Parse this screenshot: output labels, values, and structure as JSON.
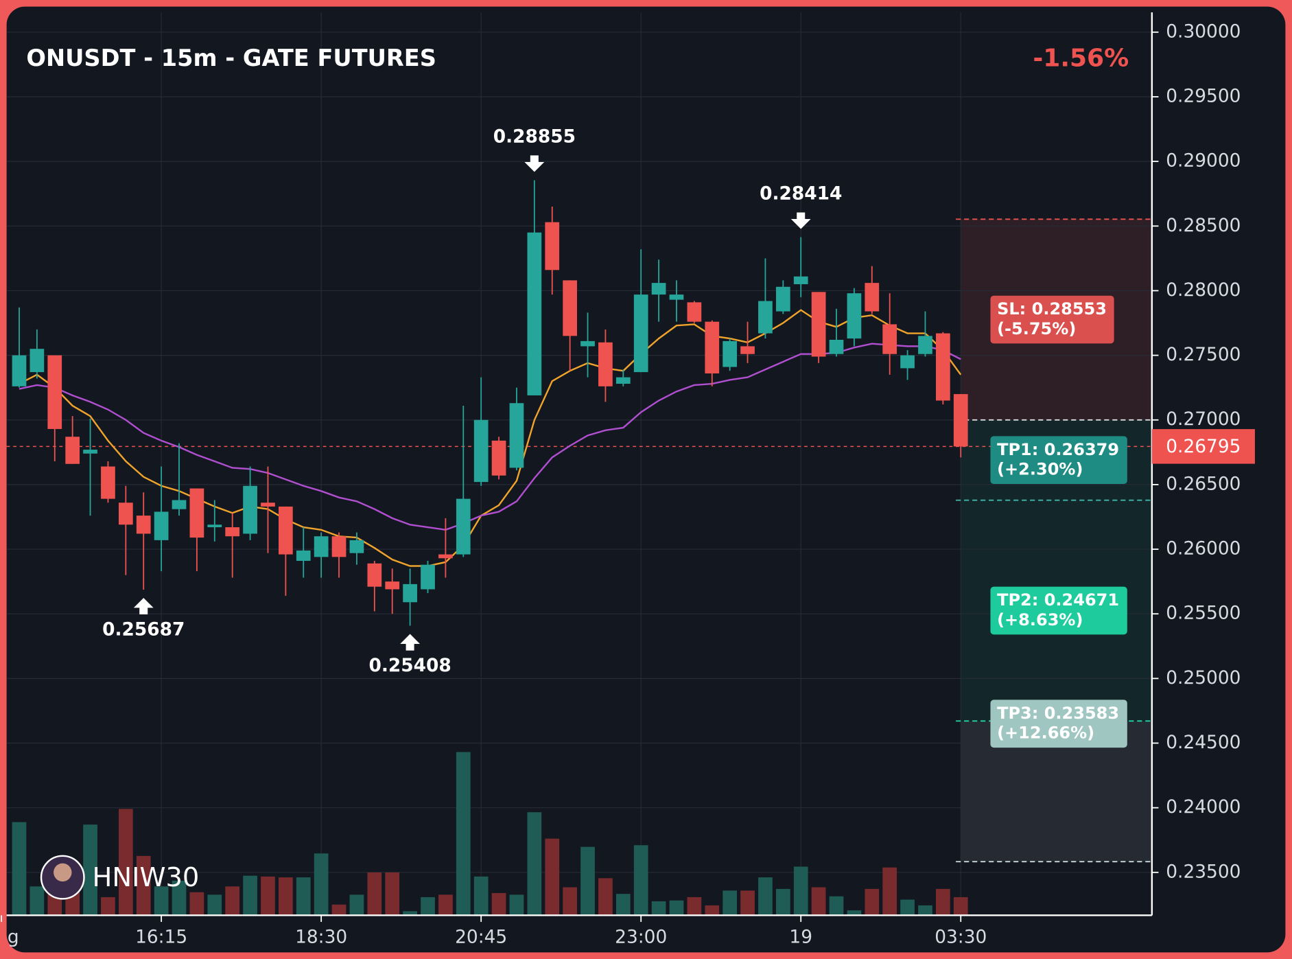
{
  "chart_data": {
    "type": "candlestick",
    "title": "ONUSDT - 15m - GATE FUTURES",
    "change": "-1.56%",
    "watermark": "HNIW30",
    "open": [
      0.2726,
      0.2737,
      0.275,
      0.2687,
      0.2674,
      0.2664,
      0.2636,
      0.2626,
      0.2607,
      0.2631,
      0.2647,
      0.2617,
      0.2617,
      0.2612,
      0.2636,
      0.2633,
      0.2591,
      0.2594,
      0.261,
      0.2597,
      0.2589,
      0.2575,
      0.2559,
      0.2569,
      0.2596,
      0.2596,
      0.2652,
      0.2684,
      0.2663,
      0.2719,
      0.2853,
      0.2808,
      0.2757,
      0.276,
      0.2728,
      0.2737,
      0.2797,
      0.2793,
      0.2791,
      0.2776,
      0.2741,
      0.2757,
      0.2767,
      0.2784,
      0.2805,
      0.2799,
      0.2751,
      0.2763,
      0.2806,
      0.2774,
      0.274,
      0.2751,
      0.2767,
      0.272
    ],
    "high": [
      0.2787,
      0.277,
      0.275,
      0.2703,
      0.2701,
      0.2668,
      0.2649,
      0.2644,
      0.2664,
      0.2682,
      0.2647,
      0.2638,
      0.2628,
      0.2664,
      0.2664,
      0.2633,
      0.2617,
      0.2613,
      0.2613,
      0.2613,
      0.2591,
      0.2585,
      0.2585,
      0.2591,
      0.2624,
      0.2711,
      0.2733,
      0.2687,
      0.2725,
      0.28855,
      0.2865,
      0.2808,
      0.2783,
      0.277,
      0.2739,
      0.2832,
      0.2824,
      0.2808,
      0.2792,
      0.2777,
      0.2763,
      0.2776,
      0.2825,
      0.2808,
      0.28414,
      0.2799,
      0.2786,
      0.2802,
      0.2819,
      0.2798,
      0.2754,
      0.2784,
      0.2768,
      0.272
    ],
    "low": [
      0.2725,
      0.2732,
      0.2668,
      0.2666,
      0.2626,
      0.2636,
      0.258,
      0.25687,
      0.2583,
      0.2626,
      0.2583,
      0.2606,
      0.2578,
      0.2607,
      0.2597,
      0.2564,
      0.2578,
      0.2578,
      0.2578,
      0.2588,
      0.2552,
      0.255,
      0.25408,
      0.2566,
      0.2578,
      0.2594,
      0.2649,
      0.2654,
      0.2661,
      0.2719,
      0.2797,
      0.2738,
      0.2733,
      0.2714,
      0.2726,
      0.2737,
      0.2776,
      0.2776,
      0.2775,
      0.2726,
      0.2738,
      0.2744,
      0.2763,
      0.2782,
      0.2795,
      0.2744,
      0.2749,
      0.2757,
      0.2782,
      0.2735,
      0.2731,
      0.2749,
      0.2712,
      0.2671
    ],
    "close": [
      0.275,
      0.2755,
      0.2693,
      0.2666,
      0.2677,
      0.2639,
      0.2619,
      0.2612,
      0.2629,
      0.2638,
      0.2609,
      0.2619,
      0.261,
      0.2649,
      0.2633,
      0.2596,
      0.2599,
      0.261,
      0.2594,
      0.2607,
      0.2571,
      0.2569,
      0.2573,
      0.2588,
      0.2593,
      0.2639,
      0.27,
      0.2657,
      0.2713,
      0.2845,
      0.2816,
      0.2765,
      0.2761,
      0.2726,
      0.2733,
      0.2797,
      0.2806,
      0.2797,
      0.2776,
      0.2736,
      0.2761,
      0.2751,
      0.2792,
      0.2803,
      0.2811,
      0.2749,
      0.2762,
      0.2798,
      0.2784,
      0.2751,
      0.275,
      0.2765,
      0.2715,
      0.26795
    ],
    "volume": [
      113,
      35,
      52,
      60,
      110,
      22,
      129,
      72,
      35,
      42,
      28,
      25,
      35,
      48,
      47,
      46,
      46,
      75,
      13,
      25,
      52,
      52,
      5,
      22,
      25,
      198,
      47,
      27,
      25,
      125,
      93,
      34,
      83,
      45,
      26,
      85,
      17,
      18,
      22,
      12,
      30,
      30,
      46,
      32,
      59,
      34,
      23,
      6,
      32,
      58,
      19,
      12,
      32,
      22
    ],
    "up_color": "#26a69a",
    "down_color": "#ef5350",
    "up_volume_color": "#1f5c55",
    "down_volume_color": "#7a2b2e",
    "moving_averages": [
      {
        "color": "#f0a42c",
        "values": [
          0.2728,
          0.2735,
          0.2725,
          0.2711,
          0.2703,
          0.2684,
          0.2668,
          0.2656,
          0.2649,
          0.2645,
          0.2639,
          0.2633,
          0.2628,
          0.2633,
          0.2631,
          0.2623,
          0.2617,
          0.2615,
          0.261,
          0.2609,
          0.2601,
          0.2592,
          0.2587,
          0.2587,
          0.259,
          0.2603,
          0.2626,
          0.2634,
          0.2653,
          0.27,
          0.273,
          0.2738,
          0.2744,
          0.274,
          0.2738,
          0.2751,
          0.2763,
          0.2773,
          0.2774,
          0.2765,
          0.2763,
          0.276,
          0.2767,
          0.2775,
          0.2785,
          0.2776,
          0.2772,
          0.2779,
          0.2781,
          0.2773,
          0.2767,
          0.2767,
          0.2754,
          0.2735
        ]
      },
      {
        "color": "#b04fd0",
        "values": [
          0.2724,
          0.2727,
          0.2725,
          0.2719,
          0.2714,
          0.2708,
          0.27,
          0.269,
          0.2684,
          0.2679,
          0.2673,
          0.2668,
          0.2663,
          0.2662,
          0.2659,
          0.2654,
          0.2649,
          0.2645,
          0.264,
          0.2637,
          0.2631,
          0.2624,
          0.2619,
          0.2617,
          0.2615,
          0.262,
          0.2626,
          0.2629,
          0.2637,
          0.2655,
          0.2671,
          0.268,
          0.2688,
          0.2692,
          0.2694,
          0.2706,
          0.2715,
          0.2722,
          0.2727,
          0.2728,
          0.2731,
          0.2733,
          0.2739,
          0.2745,
          0.2751,
          0.2751,
          0.2752,
          0.2756,
          0.2759,
          0.2758,
          0.2757,
          0.2757,
          0.2754,
          0.2747
        ]
      }
    ],
    "annotations": [
      {
        "index": 29,
        "value": 0.28855,
        "position": "above"
      },
      {
        "index": 44,
        "value": 0.28414,
        "position": "above"
      },
      {
        "index": 7,
        "value": 0.25687,
        "position": "below"
      },
      {
        "index": 22,
        "value": 0.25408,
        "position": "below"
      }
    ],
    "last_price": 0.26795,
    "last_price_color": "#ef5350",
    "position_start": 53,
    "levels": [
      {
        "value": 0.28553,
        "label": "SL: 0.28553",
        "sublabel": "(-5.75%)",
        "color": "#ef5350",
        "label_color": "#d9504e",
        "zone_color": "#2e1f27"
      },
      {
        "value": 0.27,
        "color": "#e8e8e8",
        "zone_color": "#13262a"
      },
      {
        "value": 0.26379,
        "label": "TP1: 0.26379",
        "sublabel": "(+2.30%)",
        "color": "#3fb8aa",
        "label_color": "#1f8c84",
        "zone_color": "#13262a"
      },
      {
        "value": 0.24671,
        "label": "TP2: 0.24671",
        "sublabel": "(+8.63%)",
        "color": "#22d3a8",
        "label_color": "#1ecb9c",
        "zone_color": "#252a33"
      },
      {
        "value": 0.23583,
        "label": "TP3: 0.23583",
        "sublabel": "(+12.66%)",
        "color": "#c9d8d8",
        "label_color": "#9fc6c1"
      }
    ],
    "xlim": [
      -0.71,
      63.76
    ],
    "xticks": [
      {
        "value": -1,
        "label": "g"
      },
      {
        "value": 8,
        "label": "16:15"
      },
      {
        "value": 17,
        "label": "18:30"
      },
      {
        "value": 26,
        "label": "20:45"
      },
      {
        "value": 35,
        "label": "23:00"
      },
      {
        "value": 44,
        "label": "19"
      },
      {
        "value": 53,
        "label": "03:30"
      }
    ],
    "ylim": [
      0.23168,
      0.30153
    ],
    "yticks": [
      {
        "value": 0.3,
        "label": "0.30000"
      },
      {
        "value": 0.295,
        "label": "0.29500"
      },
      {
        "value": 0.29,
        "label": "0.29000"
      },
      {
        "value": 0.285,
        "label": "0.28500"
      },
      {
        "value": 0.28,
        "label": "0.28000"
      },
      {
        "value": 0.275,
        "label": "0.27500"
      },
      {
        "value": 0.27,
        "label": "0.27000"
      },
      {
        "value": 0.265,
        "label": "0.26500"
      },
      {
        "value": 0.26,
        "label": "0.26000"
      },
      {
        "value": 0.255,
        "label": "0.25500"
      },
      {
        "value": 0.25,
        "label": "0.25000"
      },
      {
        "value": 0.245,
        "label": "0.24500"
      },
      {
        "value": 0.24,
        "label": "0.24000"
      },
      {
        "value": 0.235,
        "label": "0.23500"
      }
    ],
    "grid": true
  }
}
